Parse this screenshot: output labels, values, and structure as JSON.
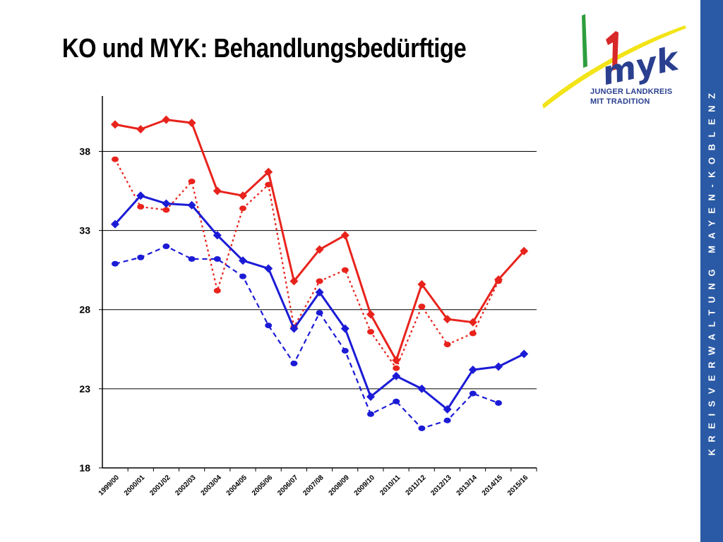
{
  "slide": {
    "title": "KO und MYK: Behandlungsbedürftige",
    "side_text": "KREISVERWALTUNG MAYEN-KOBLENZ"
  },
  "logo": {
    "mark": "myk",
    "line1": "JUNGER LANDKREIS",
    "line2": "MIT TRADITION",
    "colors": {
      "green": "#2e9e3e",
      "red": "#d8282a",
      "yellow": "#f2e418",
      "blue": "#2a3f8f"
    }
  },
  "colors": {
    "band": "#2a5aa6",
    "red": "#e8231c",
    "blue": "#1b1bd6"
  },
  "chart_data": {
    "type": "line",
    "categories": [
      "1999/00",
      "2000/01",
      "2001/02",
      "2002/03",
      "2003/04",
      "2004/05",
      "2005/06",
      "2006/07",
      "2007/08",
      "2008/09",
      "2009/10",
      "2010/11",
      "2011/12",
      "2012/13",
      "2013/14",
      "2014/15",
      "2015/16"
    ],
    "ylim": [
      18,
      41.5
    ],
    "yticks": [
      "18",
      "23",
      "28",
      "33",
      "38"
    ],
    "grid": true,
    "series": [
      {
        "color": "#e8231c",
        "style": "solid",
        "marker": "diamond",
        "values": [
          39.7,
          39.4,
          40.0,
          39.8,
          35.5,
          35.2,
          36.7,
          29.8,
          31.8,
          32.7,
          27.7,
          24.8,
          29.6,
          27.4,
          27.2,
          29.9,
          31.7
        ]
      },
      {
        "color": "#e8231c",
        "style": "dotted",
        "marker": "circle",
        "values": [
          37.5,
          34.5,
          34.3,
          36.1,
          29.2,
          34.4,
          35.9,
          26.9,
          29.8,
          30.5,
          26.6,
          24.3,
          28.2,
          25.8,
          26.5,
          29.8,
          null
        ]
      },
      {
        "color": "#1b1bd6",
        "style": "solid",
        "marker": "diamond",
        "values": [
          33.4,
          35.2,
          34.7,
          34.6,
          32.7,
          31.1,
          30.6,
          26.8,
          29.1,
          26.8,
          22.5,
          23.8,
          23.0,
          21.7,
          24.2,
          24.4,
          25.2
        ]
      },
      {
        "color": "#1b1bd6",
        "style": "dashed",
        "marker": "circle",
        "values": [
          30.9,
          31.3,
          32.0,
          31.2,
          31.2,
          30.1,
          27.0,
          24.6,
          27.8,
          25.4,
          21.4,
          22.2,
          20.5,
          21.0,
          22.7,
          22.1,
          null
        ]
      }
    ]
  }
}
